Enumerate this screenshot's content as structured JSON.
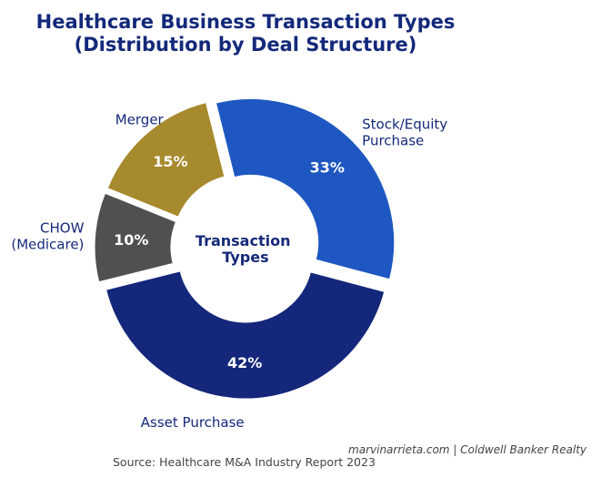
{
  "title": {
    "line1": "Healthcare Business Transaction Types",
    "line2": "(Distribution by Deal Structure)"
  },
  "chart_data": {
    "type": "pie",
    "variant": "donut",
    "center_label": [
      "Transaction",
      "Types"
    ],
    "categories": [
      "Merger",
      "Stock/Equity Purchase",
      "Asset Purchase",
      "CHOW (Medicare)"
    ],
    "values": [
      15,
      33,
      42,
      10
    ],
    "value_labels": [
      "15%",
      "33%",
      "42%",
      "10%"
    ],
    "label_lines": [
      [
        "Merger"
      ],
      [
        "Stock/Equity",
        "Purchase"
      ],
      [
        "Asset Purchase"
      ],
      [
        "CHOW",
        "(Medicare)"
      ]
    ],
    "colors": [
      "#a88a2e",
      "#1e57c1",
      "#14277a",
      "#4f5050"
    ]
  },
  "footer": {
    "source": "Source: Healthcare M&A Industry Report 2023",
    "credit": "marvinarrieta.com | Coldwell Banker Realty"
  }
}
